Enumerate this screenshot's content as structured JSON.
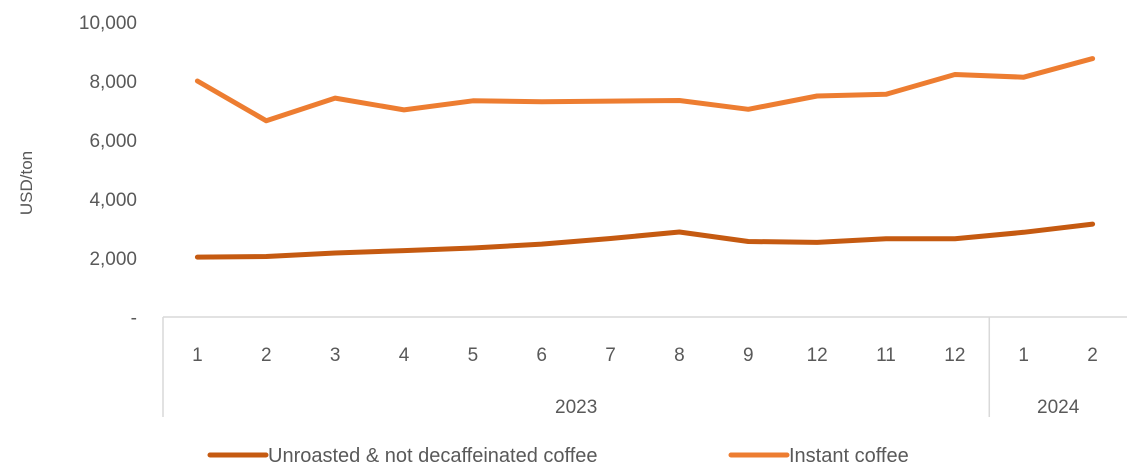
{
  "chart_data": {
    "type": "line",
    "ylabel": "USD/ton",
    "ylim": [
      0,
      10000
    ],
    "y_ticks": [
      {
        "value": 0,
        "label": "-"
      },
      {
        "value": 2000,
        "label": "2,000"
      },
      {
        "value": 4000,
        "label": "4,000"
      },
      {
        "value": 6000,
        "label": "6,000"
      },
      {
        "value": 8000,
        "label": "8,000"
      },
      {
        "value": 10000,
        "label": "10,000"
      }
    ],
    "categories": [
      "1",
      "2",
      "3",
      "4",
      "5",
      "6",
      "7",
      "8",
      "9",
      "12",
      "11",
      "12",
      "1",
      "2"
    ],
    "groups": [
      {
        "label": "2023",
        "count": 12
      },
      {
        "label": "2024",
        "count": 2
      }
    ],
    "series": [
      {
        "name": "Unroasted & not decaffeinated coffee",
        "color": "#C55A11",
        "values": [
          2030,
          2050,
          2170,
          2250,
          2340,
          2470,
          2660,
          2880,
          2560,
          2530,
          2650,
          2650,
          2870,
          3150
        ]
      },
      {
        "name": "Instant coffee",
        "color": "#ED7D31",
        "values": [
          8000,
          6650,
          7420,
          7020,
          7330,
          7300,
          7320,
          7340,
          7040,
          7490,
          7550,
          8220,
          8130,
          8760
        ]
      }
    ],
    "grid": false,
    "legend_position": "bottom"
  }
}
